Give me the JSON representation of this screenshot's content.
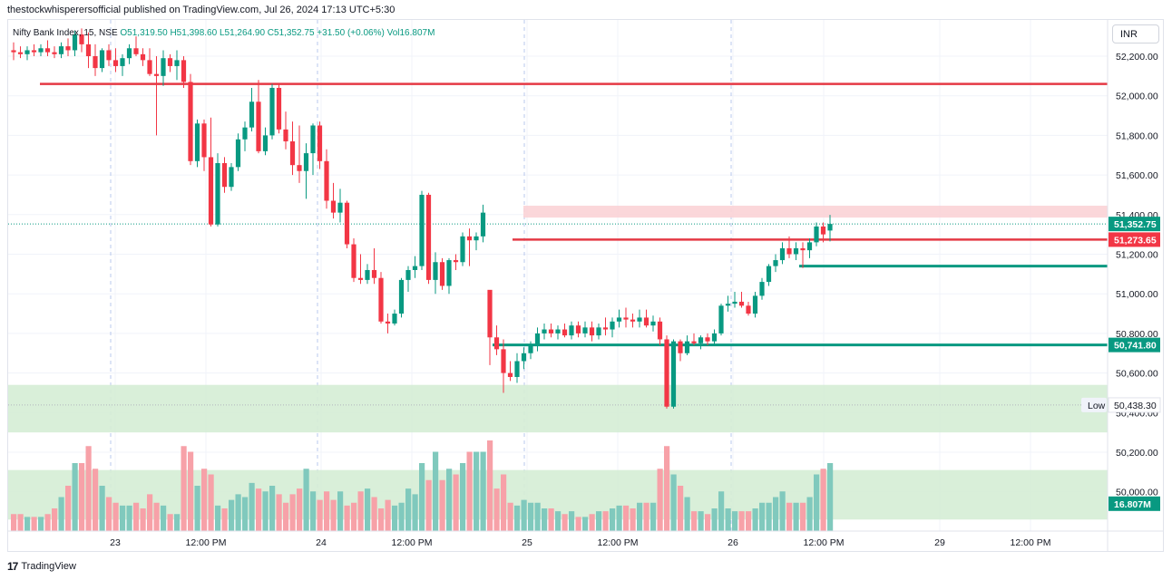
{
  "publisher_line": "thestockwhisperersofficial published on TradingView.com, Jul 26, 2024 17:13 UTC+5:30",
  "legend": {
    "symbol": "Nifty Bank Index, 15, NSE",
    "open": "O51,319.50",
    "high": "H51,398.60",
    "low": "L51,264.90",
    "close": "C51,352.75",
    "change": "+31.50 (+0.06%)",
    "volume": "Vol16.807M"
  },
  "currency": "INR",
  "footer_brand": "TradingView",
  "colors": {
    "up": "#089981",
    "down": "#f23645",
    "vol_up": "#80c9bd",
    "vol_down": "#f7a1a8",
    "zone_red": "#fbd3d6",
    "zone_green": "#d5edd5",
    "line_red": "#e53944",
    "line_green": "#089981"
  },
  "chart_data": {
    "type": "candlestick",
    "y_axis": {
      "range": [
        49860,
        52340
      ],
      "ticks": [
        "52,200.00",
        "52,000.00",
        "51,800.00",
        "51,600.00",
        "51,400.00",
        "51,200.00",
        "51,000.00",
        "50,800.00",
        "50,600.00",
        "50,400.00",
        "50,200.00",
        "50,000.00"
      ],
      "position": "right"
    },
    "x_axis": {
      "ticks": [
        "23",
        "12:00 PM",
        "24",
        "12:00 PM",
        "25",
        "12:00 PM",
        "26",
        "12:00 PM",
        "29",
        "12:00 PM"
      ]
    },
    "price_labels": [
      {
        "value": 51352.75,
        "label": "51,352.75",
        "color": "#089981"
      },
      {
        "value": 51273.65,
        "label": "51,273.65",
        "color": "#f23645"
      },
      {
        "value": 50741.8,
        "label": "50,741.80",
        "color": "#089981"
      },
      {
        "value": 50438.3,
        "label": "50,438.30",
        "tag": "Low",
        "color": "#e0e3eb"
      },
      {
        "value": 49940,
        "label": "16.807M",
        "color": "#089981"
      }
    ],
    "horizontal_lines": [
      {
        "value": 52060,
        "color": "red",
        "from": "2024-07-22T13:45",
        "to": "end"
      },
      {
        "value": 51273.65,
        "color": "red",
        "from": "2024-07-25T09:15",
        "to": "end"
      },
      {
        "value": 51140,
        "color": "green",
        "from": "2024-07-26T11:45",
        "to": "end"
      },
      {
        "value": 50741.8,
        "color": "green",
        "from": "2024-07-24T15:15",
        "to": "end"
      }
    ],
    "zones": [
      {
        "from": 51385,
        "to": 51445,
        "color": "red",
        "start": "2024-07-25T09:15"
      },
      {
        "from": 50300,
        "to": 50540,
        "color": "green",
        "start": "left"
      },
      {
        "from": 49860,
        "to": 50110,
        "color": "green",
        "start": "left"
      }
    ],
    "candles": [
      [
        52230,
        52270,
        52180,
        52220,
        0.06
      ],
      [
        52220,
        52250,
        52190,
        52210,
        0.06
      ],
      [
        52210,
        52250,
        52180,
        52230,
        0.05
      ],
      [
        52230,
        52260,
        52200,
        52220,
        0.05
      ],
      [
        52220,
        52260,
        52200,
        52240,
        0.05
      ],
      [
        52240,
        52280,
        52200,
        52220,
        0.06
      ],
      [
        52220,
        52250,
        52190,
        52210,
        0.08
      ],
      [
        52210,
        52270,
        52190,
        52250,
        0.12
      ],
      [
        52250,
        52290,
        52200,
        52230,
        0.16
      ],
      [
        52230,
        52330,
        52200,
        52310,
        0.24
      ],
      [
        52310,
        52340,
        52220,
        52260,
        0.24
      ],
      [
        52260,
        52320,
        52140,
        52200,
        0.3
      ],
      [
        52200,
        52260,
        52100,
        52140,
        0.22
      ],
      [
        52140,
        52240,
        52120,
        52230,
        0.16
      ],
      [
        52230,
        52260,
        52150,
        52180,
        0.12
      ],
      [
        52180,
        52240,
        52120,
        52150,
        0.1
      ],
      [
        52150,
        52210,
        52100,
        52190,
        0.09
      ],
      [
        52190,
        52260,
        52160,
        52240,
        0.09
      ],
      [
        52240,
        52300,
        52200,
        52210,
        0.1
      ],
      [
        52210,
        52240,
        52150,
        52180,
        0.08
      ],
      [
        52180,
        52240,
        52100,
        52110,
        0.13
      ],
      [
        52110,
        52200,
        51800,
        52100,
        0.1
      ],
      [
        52100,
        52230,
        52050,
        52190,
        0.09
      ],
      [
        52190,
        52210,
        52120,
        52150,
        0.06
      ],
      [
        52150,
        52230,
        52080,
        52180,
        0.06
      ],
      [
        52180,
        52200,
        52040,
        52070,
        0.3
      ],
      [
        52070,
        52110,
        51650,
        51670,
        0.28
      ],
      [
        51670,
        51880,
        51640,
        51860,
        0.16
      ],
      [
        51860,
        51880,
        51620,
        51690,
        0.22
      ],
      [
        51690,
        51890,
        51340,
        51350,
        0.2
      ],
      [
        51350,
        51710,
        51340,
        51660,
        0.09
      ],
      [
        51660,
        51690,
        51510,
        51540,
        0.08
      ],
      [
        51540,
        51660,
        51520,
        51640,
        0.11
      ],
      [
        51640,
        51810,
        51620,
        51780,
        0.13
      ],
      [
        51780,
        51870,
        51720,
        51840,
        0.12
      ],
      [
        51840,
        52040,
        51820,
        51970,
        0.17
      ],
      [
        51970,
        52080,
        51710,
        51720,
        0.15
      ],
      [
        51720,
        51840,
        51700,
        51800,
        0.14
      ],
      [
        51800,
        52060,
        51780,
        52040,
        0.16
      ],
      [
        52040,
        52060,
        51810,
        51830,
        0.13
      ],
      [
        51830,
        51920,
        51730,
        51770,
        0.1
      ],
      [
        51770,
        51870,
        51600,
        51650,
        0.13
      ],
      [
        51650,
        51850,
        51560,
        51620,
        0.15
      ],
      [
        51620,
        51760,
        51480,
        51710,
        0.22
      ],
      [
        51710,
        51860,
        51600,
        51850,
        0.14
      ],
      [
        51850,
        51870,
        51630,
        51670,
        0.11
      ],
      [
        51670,
        51730,
        51430,
        51470,
        0.14
      ],
      [
        51470,
        51560,
        51380,
        51410,
        0.11
      ],
      [
        51410,
        51530,
        51360,
        51460,
        0.14
      ],
      [
        51460,
        51470,
        51230,
        51250,
        0.09
      ],
      [
        51250,
        51280,
        51060,
        51080,
        0.1
      ],
      [
        51080,
        51200,
        51050,
        51070,
        0.14
      ],
      [
        51070,
        51150,
        51050,
        51120,
        0.15
      ],
      [
        51120,
        51230,
        51050,
        51080,
        0.12
      ],
      [
        51080,
        51110,
        50850,
        50860,
        0.08
      ],
      [
        50860,
        50900,
        50800,
        50850,
        0.11
      ],
      [
        50850,
        50920,
        50840,
        50900,
        0.09
      ],
      [
        50900,
        51080,
        50880,
        51070,
        0.1
      ],
      [
        51070,
        51140,
        51010,
        51120,
        0.15
      ],
      [
        51120,
        51190,
        51080,
        51140,
        0.13
      ],
      [
        51140,
        51520,
        51120,
        51500,
        0.24
      ],
      [
        51500,
        51510,
        51050,
        51070,
        0.18
      ],
      [
        51070,
        51210,
        51000,
        51160,
        0.28
      ],
      [
        51160,
        51180,
        51020,
        51040,
        0.18
      ],
      [
        51040,
        51180,
        51000,
        51170,
        0.22
      ],
      [
        51170,
        51200,
        51120,
        51160,
        0.2
      ],
      [
        51160,
        51310,
        51140,
        51290,
        0.24
      ],
      [
        51290,
        51330,
        51140,
        51270,
        0.28
      ],
      [
        51270,
        51310,
        51220,
        51290,
        0.28
      ],
      [
        51290,
        51450,
        51260,
        51410,
        0.28
      ],
      [
        51020,
        51010,
        50640,
        50780,
        0.32
      ],
      [
        50780,
        50840,
        50690,
        50720,
        0.15
      ],
      [
        50720,
        50770,
        50500,
        50600,
        0.2
      ],
      [
        50600,
        50660,
        50560,
        50580,
        0.1
      ],
      [
        50580,
        50700,
        50550,
        50660,
        0.09
      ],
      [
        50660,
        50730,
        50620,
        50700,
        0.11
      ],
      [
        50700,
        50760,
        50670,
        50740,
        0.1
      ],
      [
        50740,
        50830,
        50710,
        50800,
        0.1
      ],
      [
        50800,
        50850,
        50770,
        50820,
        0.08
      ],
      [
        50820,
        50850,
        50780,
        50800,
        0.08
      ],
      [
        50800,
        50840,
        50770,
        50820,
        0.07
      ],
      [
        50820,
        50850,
        50780,
        50790,
        0.06
      ],
      [
        50790,
        50860,
        50770,
        50840,
        0.07
      ],
      [
        50840,
        50860,
        50780,
        50800,
        0.05
      ],
      [
        50800,
        50860,
        50780,
        50830,
        0.05
      ],
      [
        50830,
        50860,
        50760,
        50790,
        0.06
      ],
      [
        50790,
        50850,
        50770,
        50830,
        0.07
      ],
      [
        50830,
        50880,
        50790,
        50820,
        0.07
      ],
      [
        50820,
        50880,
        50780,
        50860,
        0.08
      ],
      [
        50860,
        50920,
        50830,
        50880,
        0.09
      ],
      [
        50880,
        50930,
        50830,
        50870,
        0.09
      ],
      [
        50870,
        50900,
        50830,
        50860,
        0.08
      ],
      [
        50860,
        50920,
        50830,
        50880,
        0.1
      ],
      [
        50880,
        50920,
        50830,
        50840,
        0.1
      ],
      [
        50840,
        50890,
        50810,
        50860,
        0.1
      ],
      [
        50860,
        50880,
        50740,
        50770,
        0.22
      ],
      [
        50770,
        50790,
        50420,
        50430,
        0.3
      ],
      [
        50430,
        50770,
        50420,
        50760,
        0.2
      ],
      [
        50760,
        50770,
        50660,
        50700,
        0.16
      ],
      [
        50700,
        50790,
        50690,
        50760,
        0.12
      ],
      [
        50760,
        50800,
        50740,
        50750,
        0.07
      ],
      [
        50750,
        50790,
        50720,
        50780,
        0.07
      ],
      [
        50780,
        50800,
        50740,
        50760,
        0.06
      ],
      [
        50760,
        50820,
        50740,
        50800,
        0.08
      ],
      [
        50800,
        50950,
        50790,
        50940,
        0.14
      ],
      [
        50940,
        50990,
        50910,
        50950,
        0.08
      ],
      [
        50950,
        51010,
        50930,
        50960,
        0.07
      ],
      [
        50960,
        51010,
        50930,
        50940,
        0.07
      ],
      [
        50940,
        50960,
        50890,
        50900,
        0.07
      ],
      [
        50900,
        51010,
        50880,
        50990,
        0.08
      ],
      [
        50990,
        51080,
        50970,
        51060,
        0.1
      ],
      [
        51060,
        51150,
        51040,
        51140,
        0.1
      ],
      [
        51140,
        51200,
        51110,
        51170,
        0.12
      ],
      [
        51170,
        51260,
        51150,
        51230,
        0.14
      ],
      [
        51230,
        51290,
        51180,
        51200,
        0.1
      ],
      [
        51200,
        51260,
        51170,
        51230,
        0.1
      ],
      [
        51230,
        51260,
        51130,
        51220,
        0.1
      ],
      [
        51220,
        51280,
        51180,
        51260,
        0.12
      ],
      [
        51260,
        51360,
        51240,
        51340,
        0.2
      ],
      [
        51340,
        51360,
        51260,
        51300,
        0.22
      ],
      [
        51319.5,
        51398.6,
        51264.9,
        51352.75,
        0.24
      ]
    ]
  }
}
